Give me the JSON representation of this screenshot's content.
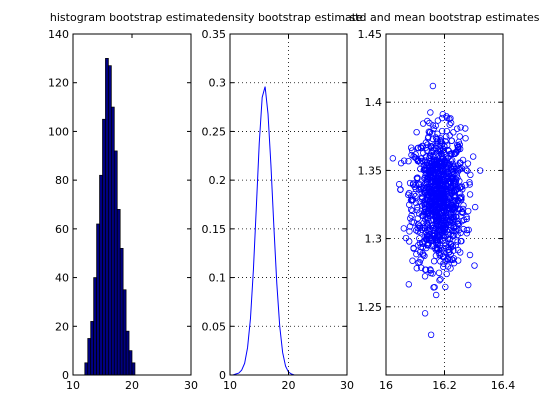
{
  "chart_data": [
    {
      "type": "bar",
      "title": "histogram bootstrap estimate",
      "xlim": [
        10,
        30
      ],
      "ylim": [
        0,
        140
      ],
      "xticks": [
        10,
        20,
        30
      ],
      "yticks": [
        0,
        20,
        40,
        60,
        80,
        100,
        120,
        140
      ],
      "grid": false,
      "bar_width": 0.5,
      "bar_fill": "#000080",
      "bar_edge": "#000000",
      "x": [
        12.25,
        12.75,
        13.25,
        13.75,
        14.25,
        14.75,
        15.25,
        15.75,
        16.25,
        16.75,
        17.25,
        17.75,
        18.25,
        18.75,
        19.25,
        19.75,
        20.25
      ],
      "values": [
        5,
        15,
        22,
        40,
        62,
        82,
        105,
        130,
        127,
        110,
        92,
        68,
        52,
        35,
        18,
        10,
        5
      ]
    },
    {
      "type": "line",
      "title": "density bootstrap estimate",
      "xlim": [
        10,
        30
      ],
      "ylim": [
        0,
        0.35
      ],
      "xticks": [
        10,
        20,
        30
      ],
      "yticks": [
        0,
        0.05,
        0.1,
        0.15,
        0.2,
        0.25,
        0.3,
        0.35
      ],
      "ytick_labels": [
        "0",
        "0.05",
        "0.1",
        "0.15",
        "0.2",
        "0.25",
        "0.3",
        "0.35"
      ],
      "grid": true,
      "line_color": "#0000ff",
      "x": [
        10.5,
        11,
        11.5,
        12,
        12.5,
        13,
        13.5,
        14,
        14.5,
        15,
        15.5,
        16,
        16.5,
        17,
        17.5,
        18,
        18.5,
        19,
        19.5,
        20,
        20.5,
        21,
        21.5
      ],
      "y": [
        0,
        0.001,
        0.002,
        0.005,
        0.012,
        0.028,
        0.058,
        0.108,
        0.172,
        0.238,
        0.285,
        0.296,
        0.268,
        0.215,
        0.152,
        0.094,
        0.05,
        0.023,
        0.009,
        0.003,
        0.001,
        0,
        0
      ]
    },
    {
      "type": "scatter",
      "title": "std and mean bootstrap estimates",
      "xlim": [
        16,
        16.4
      ],
      "ylim": [
        1.2,
        1.45
      ],
      "xticks": [
        16,
        16.2,
        16.4
      ],
      "yticks": [
        1.25,
        1.3,
        1.35,
        1.4,
        1.45
      ],
      "grid": true,
      "marker": "o",
      "marker_color": "#0000ff",
      "n_points": 1000,
      "x_mean": 16.18,
      "x_std": 0.045,
      "y_mean": 1.33,
      "y_std": 0.025
    }
  ]
}
